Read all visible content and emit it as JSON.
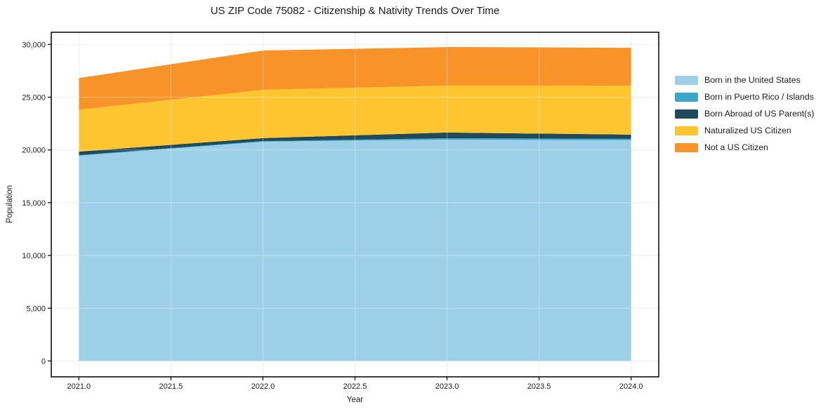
{
  "chart_data": {
    "type": "area",
    "stacked": true,
    "title": "US ZIP Code 75082 - Citizenship & Nativity Trends Over Time",
    "xlabel": "Year",
    "ylabel": "Population",
    "x": [
      2021,
      2022,
      2023,
      2024
    ],
    "series": [
      {
        "name": "Born in the United States",
        "color": "#9DCFE8",
        "values": [
          19450,
          20780,
          20980,
          20920
        ]
      },
      {
        "name": "Born in Puerto Rico / Islands",
        "color": "#3BA7C6",
        "values": [
          60,
          60,
          130,
          130
        ]
      },
      {
        "name": "Born Abroad of US Parent(s)",
        "color": "#20495C",
        "values": [
          330,
          280,
          540,
          400
        ]
      },
      {
        "name": "Naturalized US Citizen",
        "color": "#FDC52F",
        "values": [
          3980,
          4580,
          4450,
          4640
        ]
      },
      {
        "name": "Not a US Citizen",
        "color": "#F79329",
        "values": [
          2990,
          3720,
          3650,
          3590
        ]
      }
    ],
    "totals": [
      26810,
      29420,
      29750,
      29680
    ],
    "xticks": {
      "values": [
        2021,
        2021.5,
        2022,
        2022.5,
        2023,
        2023.5,
        2024
      ],
      "labels": [
        "2021.0",
        "2021.5",
        "2022.0",
        "2022.5",
        "2023.0",
        "2023.5",
        "2024.0"
      ]
    },
    "yticks": {
      "values": [
        0,
        5000,
        10000,
        15000,
        20000,
        25000,
        30000
      ],
      "labels": [
        "0",
        "5,000",
        "10,000",
        "15,000",
        "20,000",
        "25,000",
        "30,000"
      ]
    },
    "xlim": [
      2020.85,
      2024.15
    ],
    "ylim": [
      -1500,
      31150
    ],
    "grid": true,
    "legend_position": "right-outside"
  },
  "colors": {
    "background": "#FFFFFF",
    "grid": "#ECECEC",
    "grid_overlay": "rgba(255,255,255,0.30)",
    "axis": "#000000",
    "text": "#1a1a1a"
  }
}
